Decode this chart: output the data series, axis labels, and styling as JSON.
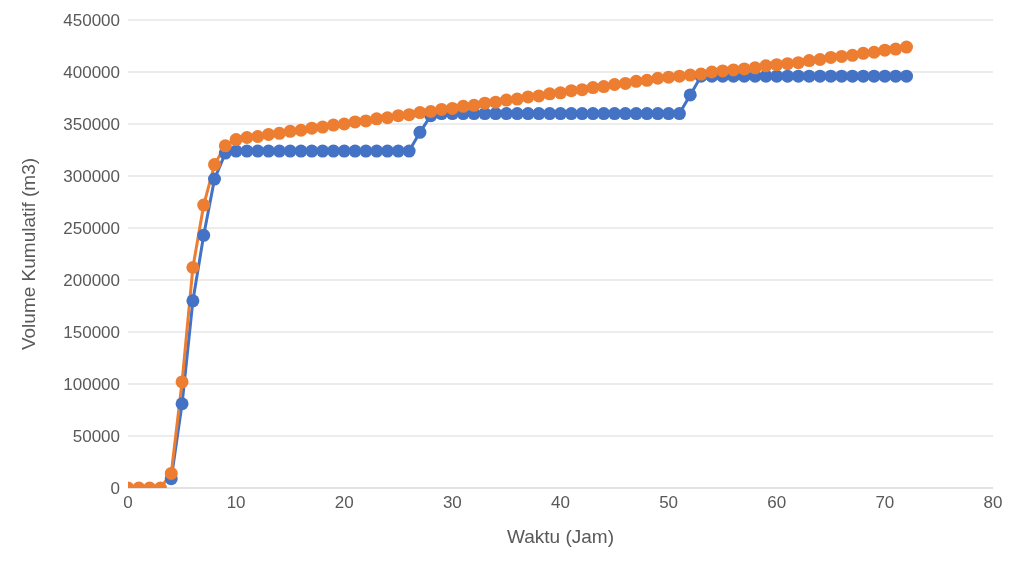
{
  "chart_data": {
    "type": "line",
    "xlabel": "Waktu (Jam)",
    "ylabel": "Volume Kumulatif (m3)",
    "x": [
      0,
      1,
      2,
      3,
      4,
      5,
      6,
      7,
      8,
      9,
      10,
      11,
      12,
      13,
      14,
      15,
      16,
      17,
      18,
      19,
      20,
      21,
      22,
      23,
      24,
      25,
      26,
      27,
      28,
      29,
      30,
      31,
      32,
      33,
      34,
      35,
      36,
      37,
      38,
      39,
      40,
      41,
      42,
      43,
      44,
      45,
      46,
      47,
      48,
      49,
      50,
      51,
      52,
      53,
      54,
      55,
      56,
      57,
      58,
      59,
      60,
      61,
      62,
      63,
      64,
      65,
      66,
      67,
      68,
      69,
      70,
      71,
      72
    ],
    "series": [
      {
        "color": "#4472c4",
        "values": [
          null,
          null,
          null,
          null,
          9000,
          81000,
          180000,
          243000,
          297000,
          322000,
          324000,
          324000,
          324000,
          324000,
          324000,
          324000,
          324000,
          324000,
          324000,
          324000,
          324000,
          324000,
          324000,
          324000,
          324000,
          324000,
          324000,
          342000,
          358000,
          360000,
          360000,
          360000,
          360000,
          360000,
          360000,
          360000,
          360000,
          360000,
          360000,
          360000,
          360000,
          360000,
          360000,
          360000,
          360000,
          360000,
          360000,
          360000,
          360000,
          360000,
          360000,
          360000,
          378000,
          396000,
          396000,
          396000,
          396000,
          396000,
          396000,
          396000,
          396000,
          396000,
          396000,
          396000,
          396000,
          396000,
          396000,
          396000,
          396000,
          396000,
          396000,
          396000,
          396000
        ]
      },
      {
        "color": "#ed7d31",
        "values": [
          0,
          0,
          0,
          0,
          14000,
          102000,
          212000,
          272000,
          311000,
          329000,
          335000,
          337000,
          338000,
          340000,
          341000,
          343000,
          344000,
          346000,
          347000,
          349000,
          350000,
          352000,
          353000,
          355000,
          356000,
          358000,
          359000,
          361000,
          362000,
          364000,
          365000,
          367000,
          368000,
          370000,
          371000,
          373000,
          374000,
          376000,
          377000,
          379000,
          380000,
          382000,
          383000,
          385000,
          386000,
          388000,
          389000,
          391000,
          392000,
          394000,
          395000,
          396000,
          397000,
          398000,
          400000,
          401000,
          402000,
          403000,
          404000,
          406000,
          407000,
          408000,
          409000,
          411000,
          412000,
          414000,
          415000,
          416000,
          418000,
          419000,
          421000,
          422000,
          424000
        ]
      }
    ],
    "xlim": [
      0,
      80
    ],
    "xticks": [
      0,
      10,
      20,
      30,
      40,
      50,
      60,
      70,
      80
    ],
    "ylim": [
      0,
      450000
    ],
    "yticks": [
      0,
      50000,
      100000,
      150000,
      200000,
      250000,
      300000,
      350000,
      400000,
      450000
    ],
    "grid": "y",
    "marker": "circle",
    "line_style": "solid"
  }
}
